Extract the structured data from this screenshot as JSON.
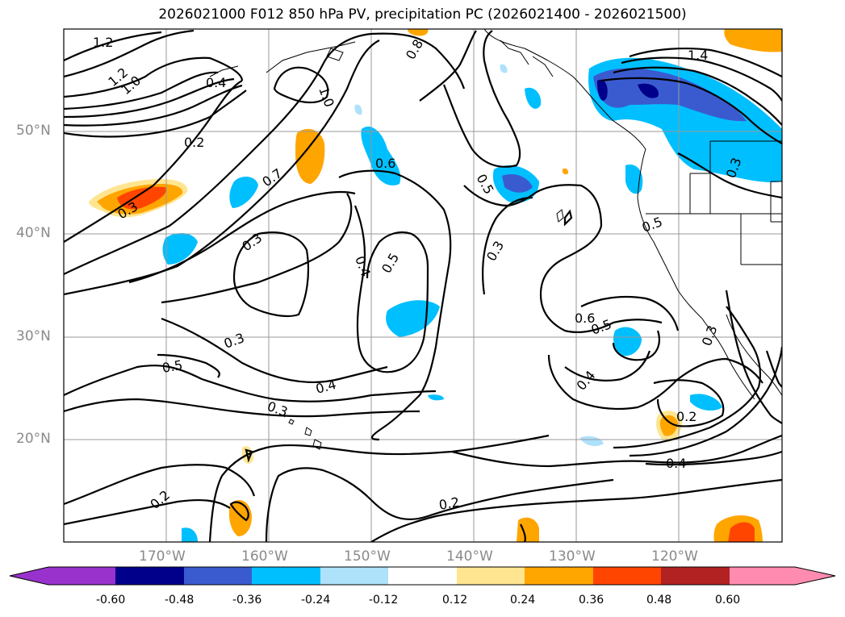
{
  "title": "2026021000 F012 850 hPa PV, precipitation PC (2026021400 - 2026021500)",
  "map": {
    "lon_range": [
      -180,
      -110
    ],
    "lat_range": [
      10,
      60
    ],
    "lon_ticks": [
      "170°W",
      "160°W",
      "150°W",
      "140°W",
      "130°W",
      "120°W"
    ],
    "lat_ticks": [
      "50°N",
      "40°N",
      "30°N",
      "20°N"
    ],
    "grid": true,
    "contour_labels": [
      "1.2",
      "1.2",
      "1.0",
      "0.4",
      "1.0",
      "0.8",
      "0.2",
      "0.7",
      "0.3",
      "0.6",
      "0.5",
      "0.3",
      "0.4",
      "0.5",
      "0.3",
      "0.3",
      "0.5",
      "0.4",
      "0.3",
      "0.2",
      "0.2",
      "0.6",
      "0.5",
      "0.4",
      "0.2",
      "0.4",
      "0.5",
      "0.3",
      "1.4",
      "0.3"
    ]
  },
  "colorbar": {
    "levels": [
      "-0.60",
      "-0.48",
      "-0.36",
      "-0.24",
      "-0.12",
      "0.12",
      "0.24",
      "0.36",
      "0.48",
      "0.60"
    ],
    "colors": [
      "#9932cc",
      "#00008b",
      "#3a5bd0",
      "#00bfff",
      "#aee1fa",
      "#ffffff",
      "#ffe58f",
      "#ffa500",
      "#ff4500",
      "#b22222",
      "#ff8cb0"
    ]
  }
}
